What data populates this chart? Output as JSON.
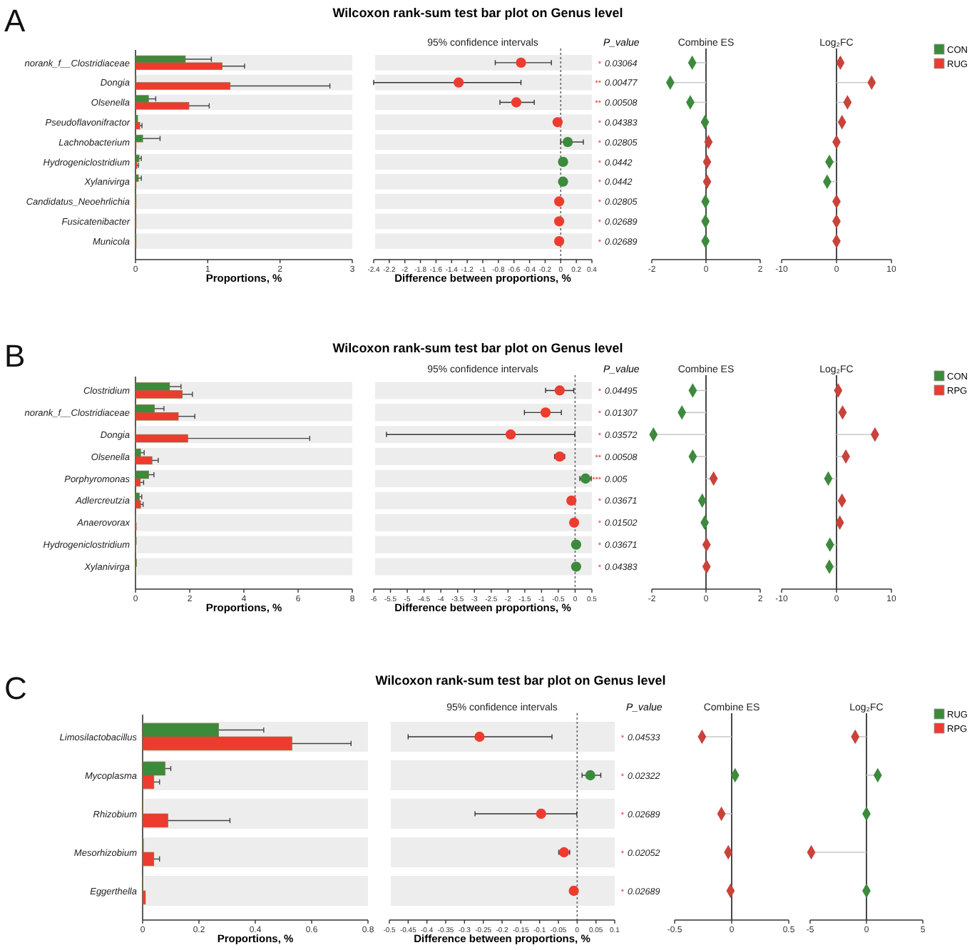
{
  "chart_data": [
    {
      "type": "other",
      "title": "Wilcoxon rank-sum test bar plot on Genus level",
      "annotations": [
        "A"
      ]
    },
    {
      "type": "bar",
      "orientation": "horizontal",
      "xlabel": "Proportions, %",
      "legend": "right",
      "categories": [
        "norank_f__Clostridiaceae",
        "Dongia",
        "Olsenella",
        "Pseudoflavonifractor",
        "Lachnobacterium",
        "Hydrogeniclostridium",
        "Xylanivirga",
        "Candidatus_Neoehrlichia",
        "Fusicatenibacter",
        "Municola"
      ],
      "series": [
        {
          "name": "CON",
          "color": "#3b8b3b",
          "values": [
            0.69,
            0.01,
            0.18,
            0.03,
            0.1,
            0.05,
            0.04,
            0.01,
            0.01,
            0.01
          ],
          "errors": [
            [
              0.69,
              1.05
            ],
            null,
            [
              0.18,
              0.28
            ],
            null,
            [
              0.1,
              0.34
            ],
            [
              0.05,
              0.08
            ],
            [
              0.04,
              0.08
            ],
            null,
            null,
            null
          ]
        },
        {
          "name": "RUG",
          "color": "#ee3b2f",
          "values": [
            1.2,
            1.31,
            0.74,
            0.06,
            0.01,
            0.02,
            0.01,
            0.01,
            0.01,
            0.01
          ],
          "errors": [
            [
              1.2,
              1.51
            ],
            [
              1.31,
              2.69
            ],
            [
              0.74,
              1.02
            ],
            [
              0.06,
              0.09
            ],
            null,
            [
              0.02,
              0.04
            ],
            null,
            null,
            null,
            null
          ]
        }
      ],
      "xlim": [
        0,
        3
      ],
      "xticks": [
        0,
        1,
        2,
        3
      ],
      "grid": "y"
    },
    {
      "type": "scatter",
      "orientation": "horizontal",
      "title": "95% confidence intervals",
      "xlabel": "Difference between proportions, %",
      "marker": "circle",
      "tick_labels": "x",
      "values": [
        -0.51,
        -1.31,
        -0.57,
        -0.04,
        0.09,
        0.03,
        0.03,
        -0.02,
        -0.02,
        -0.02
      ],
      "colors": [
        "#ee3b2f",
        "#ee3b2f",
        "#ee3b2f",
        "#ee3b2f",
        "#3b8b3b",
        "#3b8b3b",
        "#3b8b3b",
        "#ee3b2f",
        "#ee3b2f",
        "#ee3b2f"
      ],
      "errors": [
        [
          -0.84,
          -0.12
        ],
        [
          -2.4,
          -0.51
        ],
        [
          -0.78,
          -0.34
        ],
        null,
        [
          0,
          0.29
        ],
        null,
        null,
        null,
        null,
        null
      ],
      "grid": "y",
      "xlim": [
        -2.4,
        0.4
      ],
      "xticks": [
        -2.4,
        -2.2,
        -2,
        -1.8,
        -1.6,
        -1.4,
        -1.2,
        -1,
        -0.8,
        -0.6,
        -0.4,
        -0.2,
        0,
        0.2,
        0.4
      ],
      "ref_lines": [
        {
          "axis": "x",
          "value": 0,
          "line_style": "dotted"
        }
      ],
      "annotations": [
        "P_value",
        "* 0.03064",
        "** 0.00477",
        "** 0.00508",
        "* 0.04383",
        "* 0.02805",
        "* 0.0442",
        "* 0.0442",
        "* 0.02805",
        "* 0.02689",
        "* 0.02689"
      ]
    },
    {
      "type": "lollipop",
      "orientation": "horizontal",
      "title": "Combine ES",
      "marker": "diamond",
      "tick_labels": "x",
      "values": [
        -0.51,
        -1.32,
        -0.58,
        -0.04,
        0.09,
        0.04,
        0.04,
        -0.02,
        -0.02,
        -0.02
      ],
      "colors": [
        "#3d8a3d",
        "#3d8a3d",
        "#3d8a3d",
        "#3d8a3d",
        "#c8433a",
        "#c8433a",
        "#c8433a",
        "#3d8a3d",
        "#3d8a3d",
        "#3d8a3d"
      ],
      "xlim": [
        -2,
        2
      ],
      "xticks": [
        -2,
        0,
        2
      ]
    },
    {
      "type": "lollipop",
      "orientation": "horizontal",
      "title": "Log₂FC",
      "marker": "diamond",
      "tick_labels": "x",
      "values": [
        0.7,
        6.4,
        2.0,
        1.0,
        0,
        -1.3,
        -1.7,
        0,
        0,
        0
      ],
      "colors": [
        "#c8433a",
        "#c8433a",
        "#c8433a",
        "#c8433a",
        "#c8433a",
        "#3d8a3d",
        "#3d8a3d",
        "#c8433a",
        "#c8433a",
        "#c8433a"
      ],
      "xlim": [
        -10,
        10
      ],
      "xticks": [
        -10,
        0,
        10
      ]
    },
    {
      "type": "other",
      "title": "Wilcoxon rank-sum test bar plot on Genus level",
      "annotations": [
        "B"
      ]
    },
    {
      "type": "bar",
      "orientation": "horizontal",
      "xlabel": "Proportions, %",
      "legend": "right",
      "categories": [
        "Clostridium",
        "norank_f__Clostridiaceae",
        "Dongia",
        "Olsenella",
        "Porphyromonas",
        "Adlercreutzia",
        "Anaerovorax",
        "Hydrogeniclostridium",
        "Xylanivirga"
      ],
      "series": [
        {
          "name": "CON",
          "color": "#3b8b3b",
          "values": [
            1.26,
            0.7,
            0.02,
            0.19,
            0.49,
            0.14,
            0.02,
            0.03,
            0.04
          ],
          "errors": [
            [
              1.26,
              1.68
            ],
            [
              0.7,
              1.05
            ],
            null,
            [
              0.19,
              0.32
            ],
            [
              0.49,
              0.68
            ],
            [
              0.14,
              0.23
            ],
            null,
            null,
            null
          ]
        },
        {
          "name": "RPG",
          "color": "#ee3b2f",
          "values": [
            1.73,
            1.58,
            1.93,
            0.61,
            0.18,
            0.19,
            0.03,
            0.02,
            0.02
          ],
          "errors": [
            [
              1.73,
              2.1
            ],
            [
              1.58,
              2.19
            ],
            [
              1.93,
              6.43
            ],
            [
              0.61,
              0.84
            ],
            [
              0.18,
              0.3
            ],
            [
              0.19,
              0.28
            ],
            null,
            null,
            null
          ]
        }
      ],
      "xlim": [
        0,
        8
      ],
      "xticks": [
        0,
        2,
        4,
        6,
        8
      ],
      "grid": "y"
    },
    {
      "type": "scatter",
      "orientation": "horizontal",
      "title": "95% confidence intervals",
      "xlabel": "Difference between proportions, %",
      "marker": "circle",
      "tick_labels": "x",
      "values": [
        -0.46,
        -0.88,
        -1.92,
        -0.46,
        0.31,
        -0.11,
        -0.03,
        0.03,
        0.03
      ],
      "colors": [
        "#ee3b2f",
        "#ee3b2f",
        "#ee3b2f",
        "#ee3b2f",
        "#3b8b3b",
        "#ee3b2f",
        "#ee3b2f",
        "#3b8b3b",
        "#3b8b3b"
      ],
      "errors": [
        [
          -0.88,
          -0.04
        ],
        [
          -1.51,
          -0.41
        ],
        [
          -5.62,
          -0.01
        ],
        [
          -0.61,
          -0.31
        ],
        [
          0.14,
          0.48
        ],
        null,
        null,
        null,
        null
      ],
      "grid": "y",
      "xlim": [
        -6,
        0.5
      ],
      "xticks": [
        -6,
        -5.5,
        -5,
        -4.5,
        -4,
        -3.5,
        -3,
        -2.5,
        -2,
        -1.5,
        -1,
        -0.5,
        0,
        0.5
      ],
      "ref_lines": [
        {
          "axis": "x",
          "value": 0,
          "line_style": "dotted"
        }
      ],
      "annotations": [
        "P_value",
        "* 0.04495",
        "* 0.01307",
        "* 0.03572",
        "** 0.00508",
        "*** 0.005",
        "* 0.03671",
        "* 0.01502",
        "* 0.03671",
        "* 0.04383"
      ]
    },
    {
      "type": "lollipop",
      "orientation": "horizontal",
      "title": "Combine ES",
      "marker": "diamond",
      "tick_labels": "x",
      "values": [
        -0.49,
        -0.89,
        -1.94,
        -0.49,
        0.28,
        -0.14,
        -0.05,
        0.02,
        0.02
      ],
      "colors": [
        "#3d8a3d",
        "#3d8a3d",
        "#3d8a3d",
        "#3d8a3d",
        "#c8433a",
        "#3d8a3d",
        "#3d8a3d",
        "#c8433a",
        "#c8433a"
      ],
      "xlim": [
        -2,
        2
      ],
      "xticks": [
        -2,
        0,
        2
      ]
    },
    {
      "type": "lollipop",
      "orientation": "horizontal",
      "title": "Log₂FC",
      "marker": "diamond",
      "tick_labels": "x",
      "values": [
        0.3,
        1.1,
        7.0,
        1.7,
        -1.5,
        1.0,
        0.6,
        -1.2,
        -1.3
      ],
      "colors": [
        "#c8433a",
        "#c8433a",
        "#c8433a",
        "#c8433a",
        "#3d8a3d",
        "#c8433a",
        "#c8433a",
        "#3d8a3d",
        "#3d8a3d"
      ],
      "xlim": [
        -10,
        10
      ],
      "xticks": [
        -10,
        0,
        10
      ]
    },
    {
      "type": "other",
      "title": "Wilcoxon rank-sum test bar plot on Genus level",
      "annotations": [
        "C"
      ]
    },
    {
      "type": "bar",
      "orientation": "horizontal",
      "xlabel": "Proportions, %",
      "legend": "right",
      "categories": [
        "Limosilactobacillus",
        "Mycoplasma",
        "Rhizobium",
        "Mesorhizobium",
        "Eggerthella"
      ],
      "series": [
        {
          "name": "RUG",
          "color": "#3b8b3b",
          "values": [
            0.27,
            0.08,
            0.002,
            0.003,
            0.002
          ],
          "errors": [
            [
              0.27,
              0.43
            ],
            [
              0.08,
              0.1
            ],
            null,
            null,
            null
          ]
        },
        {
          "name": "RPG",
          "color": "#ee3b2f",
          "values": [
            0.53,
            0.04,
            0.09,
            0.04,
            0.01
          ],
          "errors": [
            [
              0.53,
              0.74
            ],
            [
              0.04,
              0.06
            ],
            [
              0.09,
              0.31
            ],
            [
              0.04,
              0.06
            ],
            null
          ]
        }
      ],
      "xlim": [
        0,
        0.8
      ],
      "xticks": [
        0,
        0.2,
        0.4,
        0.6,
        0.8
      ],
      "grid": "y"
    },
    {
      "type": "scatter",
      "orientation": "horizontal",
      "title": "95% confidence intervals",
      "xlabel": "Difference between proportions, %",
      "marker": "circle",
      "tick_labels": "x",
      "values": [
        -0.26,
        0.035,
        -0.096,
        -0.035,
        -0.009
      ],
      "colors": [
        "#ee3b2f",
        "#3b8b3b",
        "#ee3b2f",
        "#ee3b2f",
        "#ee3b2f"
      ],
      "errors": [
        [
          -0.45,
          -0.067
        ],
        [
          0.013,
          0.063
        ],
        [
          -0.272,
          -0.001
        ],
        [
          -0.049,
          -0.02
        ],
        null
      ],
      "grid": "y",
      "xlim": [
        -0.5,
        0.1
      ],
      "xticks": [
        -0.5,
        -0.45,
        -0.4,
        -0.35,
        -0.3,
        -0.25,
        -0.2,
        -0.15,
        -0.1,
        -0.05,
        0,
        0.05,
        0.1
      ],
      "ref_lines": [
        {
          "axis": "x",
          "value": 0,
          "line_style": "dotted"
        }
      ],
      "annotations": [
        "P_value",
        "* 0.04533",
        "* 0.02322",
        "* 0.02689",
        "* 0.02052",
        "* 0.02689"
      ]
    },
    {
      "type": "lollipop",
      "orientation": "horizontal",
      "title": "Combine ES",
      "marker": "diamond",
      "tick_labels": "x",
      "values": [
        -0.26,
        0.03,
        -0.09,
        -0.03,
        -0.01
      ],
      "colors": [
        "#c8433a",
        "#3d8a3d",
        "#c8433a",
        "#c8433a",
        "#c8433a"
      ],
      "xlim": [
        -0.5,
        0.5
      ],
      "xticks": [
        -0.5,
        0,
        0.5
      ]
    },
    {
      "type": "lollipop",
      "orientation": "horizontal",
      "title": "Log₂FC",
      "marker": "diamond",
      "tick_labels": "x",
      "values": [
        -1.0,
        1.0,
        0,
        -4.9,
        0
      ],
      "colors": [
        "#c8433a",
        "#3d8a3d",
        "#3d8a3d",
        "#c8433a",
        "#3d8a3d"
      ],
      "xlim": [
        -5,
        5
      ],
      "xticks": [
        -5,
        0,
        5
      ]
    }
  ]
}
